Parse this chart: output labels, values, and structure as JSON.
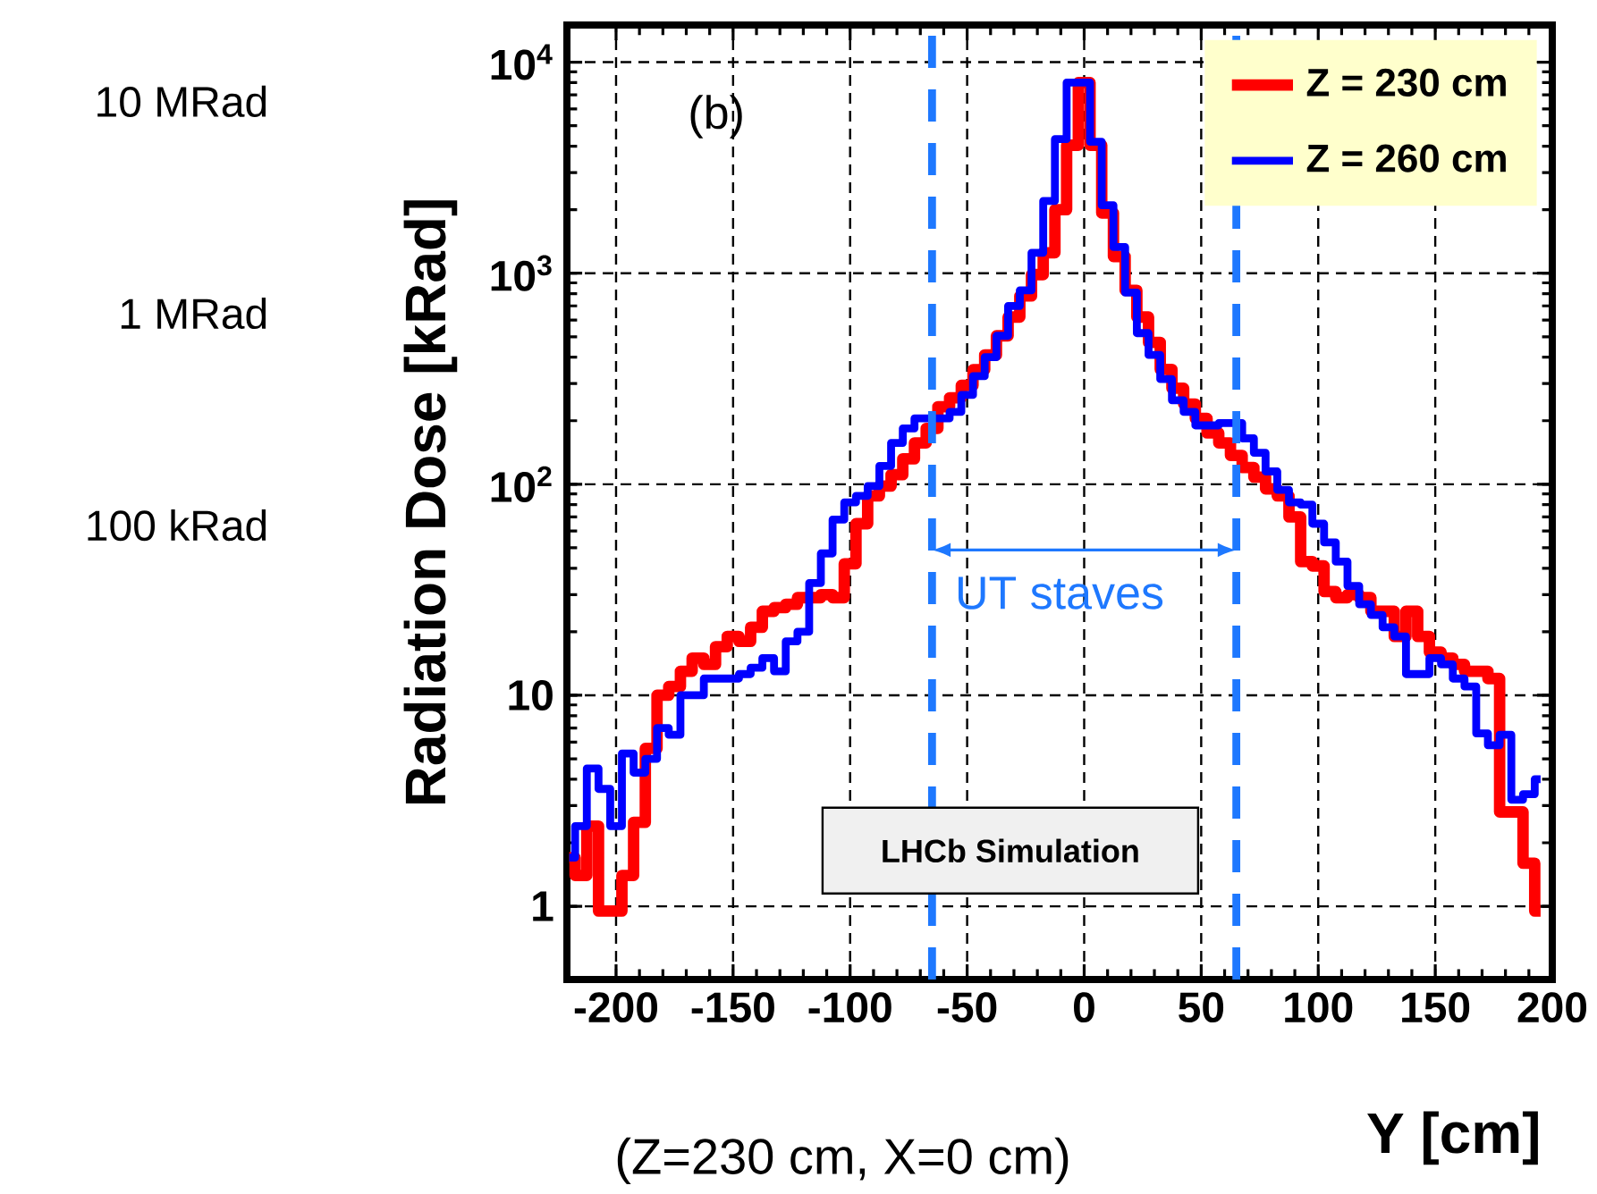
{
  "chart_data": {
    "type": "step",
    "xlabel": "Y [cm]",
    "ylabel": "Radiation Dose [kRad]",
    "x": [
      -220,
      -215,
      -210,
      -205,
      -200,
      -195,
      -190,
      -185,
      -180,
      -175,
      -170,
      -165,
      -160,
      -155,
      -150,
      -145,
      -140,
      -135,
      -130,
      -125,
      -120,
      -115,
      -110,
      -105,
      -100,
      -95,
      -90,
      -85,
      -80,
      -75,
      -70,
      -65,
      -60,
      -55,
      -50,
      -45,
      -40,
      -35,
      -30,
      -25,
      -20,
      -15,
      -10,
      -5,
      0,
      5,
      10,
      15,
      20,
      25,
      30,
      35,
      40,
      45,
      50,
      55,
      60,
      65,
      70,
      75,
      80,
      85,
      90,
      95,
      100,
      105,
      110,
      115,
      120,
      125,
      130,
      135,
      140,
      145,
      150,
      155,
      160,
      165,
      170,
      175,
      180,
      185,
      190,
      195
    ],
    "series": [
      {
        "name": "Z = 230 cm",
        "color": "#ff0000",
        "values": [
          1.7,
          1.4,
          2.4,
          0.95,
          0.95,
          1.4,
          2.5,
          5.6,
          10,
          11,
          13,
          15,
          14,
          17,
          19,
          18,
          21,
          25,
          26,
          27,
          29,
          29,
          30,
          29,
          42,
          65,
          88,
          98,
          111,
          132,
          157,
          184,
          233,
          257,
          294,
          349,
          410,
          505,
          620,
          780,
          985,
          1250,
          2000,
          4040,
          8000,
          4040,
          1930,
          1200,
          830,
          620,
          470,
          350,
          285,
          240,
          205,
          175,
          157,
          137,
          120,
          108,
          95,
          88,
          70,
          43,
          41,
          31,
          29,
          30,
          29,
          25,
          25,
          19,
          25,
          19,
          16,
          15,
          14,
          13,
          13,
          12,
          2.8,
          2.8,
          1.6,
          0.95
        ]
      },
      {
        "name": "Z = 260 cm",
        "color": "#0000ff",
        "values": [
          1.7,
          2.4,
          4.5,
          3.6,
          2.4,
          5.3,
          4.3,
          5,
          7,
          6.5,
          10,
          10,
          12,
          12,
          12,
          12.6,
          13.5,
          15,
          13,
          18,
          20,
          34,
          47,
          68,
          82,
          88,
          98,
          122,
          157,
          184,
          205,
          205,
          205,
          220,
          265,
          325,
          400,
          505,
          700,
          830,
          1250,
          2200,
          4320,
          8000,
          8000,
          4200,
          2100,
          1330,
          810,
          520,
          410,
          315,
          250,
          220,
          190,
          190,
          195,
          195,
          165,
          141,
          115,
          94,
          82,
          80,
          65,
          53,
          43,
          33,
          27,
          24,
          21,
          19,
          12.6,
          12.6,
          15,
          14,
          12,
          11,
          6.6,
          5.8,
          6.5,
          3.2,
          3.4,
          4
        ]
      }
    ],
    "xlim": [
      -221,
      200
    ],
    "xticks": [
      -200,
      -150,
      -100,
      -50,
      0,
      50,
      100,
      150,
      200
    ],
    "ylim": [
      0.45,
      15000
    ],
    "yticks": [
      1,
      10,
      {
        "value": 100,
        "label": "10$^{2}$"
      },
      {
        "value": 1000,
        "label": "10$^{3}$"
      },
      {
        "value": 10000,
        "label": "10$^{4}$"
      }
    ],
    "log": "y",
    "grid": true,
    "legend": "top right",
    "line_style": "solid",
    "ref_lines": [
      {
        "axis": "x",
        "value": -65,
        "color": "#1e78ff",
        "line_style": "dashed"
      },
      {
        "axis": "x",
        "value": 65,
        "color": "#1e78ff",
        "line_style": "dashed"
      }
    ],
    "annotations": [
      "(b)",
      "UT staves",
      "LHCb Simulation",
      "(Z=230 cm, X=0 cm)",
      "10 MRad",
      "1 MRad",
      "100 kRad"
    ]
  }
}
